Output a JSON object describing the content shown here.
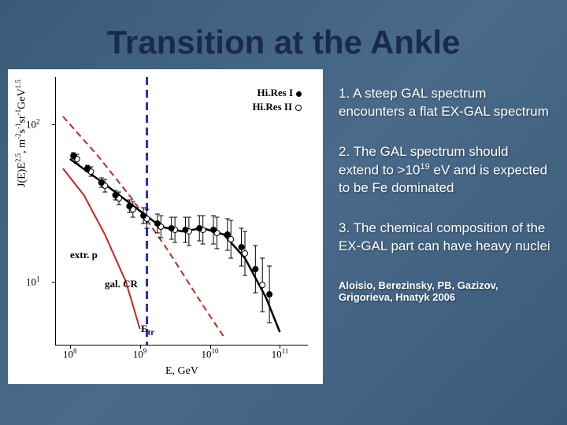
{
  "title": "Transition at the Ankle",
  "bullets": {
    "b1": "1. A steep GAL spectrum encounters a flat EX-GAL spectrum",
    "b2_pre": "2. The GAL spectrum should extend to >10",
    "b2_sup": "19",
    "b2_post": " eV and is expected to be Fe dominated",
    "b3": "3. The chemical composition of the EX-GAL part can have heavy nuclei"
  },
  "citation": "Aloisio, Berezinsky, PB, Gazizov, Grigorieva, Hnatyk 2006",
  "chart": {
    "type": "scatter-loglog",
    "background_color": "#ffffff",
    "xlabel": "E, GeV",
    "ylabel_html": "J(E)E<sup>2.5</sup>, m<sup>-2</sup>s<sup>-1</sup>sr<sup>-1</sup>GeV<sup>1.5</sup>",
    "xlim_log10": [
      7.8,
      11.4
    ],
    "ylim_log10": [
      0.6,
      2.3
    ],
    "xticks": [
      {
        "log": 8,
        "label_html": "10<sup>8</sup>"
      },
      {
        "log": 9,
        "label_html": "10<sup>9</sup>"
      },
      {
        "log": 10,
        "label_html": "10<sup>10</sup>"
      },
      {
        "log": 11,
        "label_html": "10<sup>11</sup>"
      }
    ],
    "yticks": [
      {
        "log": 1,
        "label_html": "10<sup>1</sup>"
      },
      {
        "log": 2,
        "label_html": "10<sup>2</sup>"
      }
    ],
    "legend": {
      "hires1": "Hi.Res I",
      "hires2": "Hi.Res II"
    },
    "annotations": {
      "extrp": "extr. p",
      "galcr": "gal. CR",
      "etr_html": "E<sub>tr</sub>"
    },
    "colors": {
      "extrp_line": "#d02020",
      "galcr_line": "#d02020",
      "fit_line": "#000000",
      "vline": "#2030c0",
      "data_filled": "#000000",
      "data_open": "#000000"
    },
    "vline_xlog10": 9.1,
    "curves": {
      "fit_black": [
        {
          "xlog": 8.0,
          "ylog": 1.78
        },
        {
          "xlog": 8.5,
          "ylog": 1.62
        },
        {
          "xlog": 9.0,
          "ylog": 1.45
        },
        {
          "xlog": 9.3,
          "ylog": 1.35
        },
        {
          "xlog": 9.6,
          "ylog": 1.32
        },
        {
          "xlog": 9.9,
          "ylog": 1.34
        },
        {
          "xlog": 10.2,
          "ylog": 1.3
        },
        {
          "xlog": 10.5,
          "ylog": 1.15
        },
        {
          "xlog": 10.8,
          "ylog": 0.9
        },
        {
          "xlog": 11.0,
          "ylog": 0.68
        }
      ],
      "extrp_red_dash": [
        {
          "xlog": 7.9,
          "ylog": 2.05
        },
        {
          "xlog": 8.4,
          "ylog": 1.8
        },
        {
          "xlog": 8.9,
          "ylog": 1.52
        },
        {
          "xlog": 9.4,
          "ylog": 1.2
        },
        {
          "xlog": 9.9,
          "ylog": 0.85
        },
        {
          "xlog": 10.2,
          "ylog": 0.65
        }
      ],
      "galcr_red_solid": [
        {
          "xlog": 7.9,
          "ylog": 1.72
        },
        {
          "xlog": 8.2,
          "ylog": 1.55
        },
        {
          "xlog": 8.5,
          "ylog": 1.3
        },
        {
          "xlog": 8.8,
          "ylog": 1.0
        },
        {
          "xlog": 9.0,
          "ylog": 0.7
        }
      ]
    },
    "data_points_filled": [
      {
        "xlog": 8.05,
        "ylog": 1.8,
        "errlo": 0.02,
        "errhi": 0.02
      },
      {
        "xlog": 8.25,
        "ylog": 1.72,
        "errlo": 0.02,
        "errhi": 0.02
      },
      {
        "xlog": 8.45,
        "ylog": 1.63,
        "errlo": 0.03,
        "errhi": 0.03
      },
      {
        "xlog": 8.65,
        "ylog": 1.55,
        "errlo": 0.03,
        "errhi": 0.03
      },
      {
        "xlog": 8.85,
        "ylog": 1.48,
        "errlo": 0.04,
        "errhi": 0.04
      },
      {
        "xlog": 9.05,
        "ylog": 1.42,
        "errlo": 0.05,
        "errhi": 0.05
      },
      {
        "xlog": 9.25,
        "ylog": 1.37,
        "errlo": 0.06,
        "errhi": 0.06
      },
      {
        "xlog": 9.45,
        "ylog": 1.34,
        "errlo": 0.07,
        "errhi": 0.07
      },
      {
        "xlog": 9.65,
        "ylog": 1.33,
        "errlo": 0.08,
        "errhi": 0.08
      },
      {
        "xlog": 9.85,
        "ylog": 1.34,
        "errlo": 0.08,
        "errhi": 0.08
      },
      {
        "xlog": 10.05,
        "ylog": 1.33,
        "errlo": 0.09,
        "errhi": 0.09
      },
      {
        "xlog": 10.25,
        "ylog": 1.3,
        "errlo": 0.1,
        "errhi": 0.1
      },
      {
        "xlog": 10.45,
        "ylog": 1.22,
        "errlo": 0.12,
        "errhi": 0.12
      },
      {
        "xlog": 10.65,
        "ylog": 1.08,
        "errlo": 0.15,
        "errhi": 0.15
      },
      {
        "xlog": 10.85,
        "ylog": 0.92,
        "errlo": 0.18,
        "errhi": 0.18
      }
    ],
    "data_points_open": [
      {
        "xlog": 8.1,
        "ylog": 1.78,
        "errlo": 0.03,
        "errhi": 0.03
      },
      {
        "xlog": 8.3,
        "ylog": 1.7,
        "errlo": 0.03,
        "errhi": 0.03
      },
      {
        "xlog": 8.5,
        "ylog": 1.61,
        "errlo": 0.04,
        "errhi": 0.04
      },
      {
        "xlog": 8.7,
        "ylog": 1.53,
        "errlo": 0.04,
        "errhi": 0.04
      },
      {
        "xlog": 8.9,
        "ylog": 1.46,
        "errlo": 0.05,
        "errhi": 0.05
      },
      {
        "xlog": 9.1,
        "ylog": 1.4,
        "errlo": 0.06,
        "errhi": 0.06
      },
      {
        "xlog": 9.3,
        "ylog": 1.35,
        "errlo": 0.07,
        "errhi": 0.07
      },
      {
        "xlog": 9.5,
        "ylog": 1.33,
        "errlo": 0.08,
        "errhi": 0.08
      },
      {
        "xlog": 9.7,
        "ylog": 1.32,
        "errlo": 0.09,
        "errhi": 0.09
      },
      {
        "xlog": 9.9,
        "ylog": 1.33,
        "errlo": 0.09,
        "errhi": 0.09
      },
      {
        "xlog": 10.1,
        "ylog": 1.31,
        "errlo": 0.1,
        "errhi": 0.1
      },
      {
        "xlog": 10.3,
        "ylog": 1.27,
        "errlo": 0.12,
        "errhi": 0.12
      },
      {
        "xlog": 10.5,
        "ylog": 1.18,
        "errlo": 0.14,
        "errhi": 0.14
      },
      {
        "xlog": 10.75,
        "ylog": 0.98,
        "errlo": 0.17,
        "errhi": 0.17
      }
    ]
  }
}
